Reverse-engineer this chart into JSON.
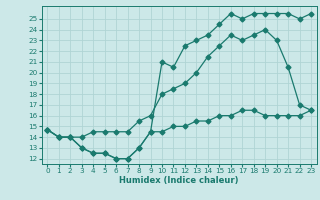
{
  "xlabel": "Humidex (Indice chaleur)",
  "xlim": [
    -0.5,
    23.5
  ],
  "ylim": [
    11.5,
    26.2
  ],
  "xticks": [
    0,
    1,
    2,
    3,
    4,
    5,
    6,
    7,
    8,
    9,
    10,
    11,
    12,
    13,
    14,
    15,
    16,
    17,
    18,
    19,
    20,
    21,
    22,
    23
  ],
  "yticks": [
    12,
    13,
    14,
    15,
    16,
    17,
    18,
    19,
    20,
    21,
    22,
    23,
    24,
    25
  ],
  "bg_color": "#cce8e8",
  "grid_color": "#b0d4d4",
  "line_color": "#1a7a6e",
  "line1_x": [
    0,
    1,
    2,
    3,
    4,
    5,
    6,
    7,
    8,
    9,
    10,
    11,
    12,
    13,
    14,
    15,
    16,
    17,
    18,
    19,
    20,
    21,
    22,
    23
  ],
  "line1_y": [
    14.7,
    14.0,
    14.0,
    14.0,
    14.5,
    14.5,
    14.5,
    14.5,
    15.5,
    16.0,
    18.0,
    18.5,
    19.0,
    20.0,
    21.5,
    22.5,
    23.5,
    23.0,
    23.5,
    24.0,
    23.0,
    20.5,
    17.0,
    16.5
  ],
  "line2_x": [
    0,
    1,
    2,
    3,
    4,
    5,
    6,
    7,
    8,
    9,
    10,
    11,
    12,
    13,
    14,
    15,
    16,
    17,
    18,
    19,
    20,
    21,
    22,
    23
  ],
  "line2_y": [
    14.7,
    14.0,
    14.0,
    13.0,
    12.5,
    12.5,
    12.0,
    12.0,
    13.0,
    14.5,
    21.0,
    20.5,
    22.5,
    23.0,
    23.5,
    24.5,
    25.5,
    25.0,
    25.5,
    25.5,
    25.5,
    25.5,
    25.0,
    25.5
  ],
  "line3_x": [
    0,
    1,
    2,
    3,
    4,
    5,
    6,
    7,
    8,
    9,
    10,
    11,
    12,
    13,
    14,
    15,
    16,
    17,
    18,
    19,
    20,
    21,
    22,
    23
  ],
  "line3_y": [
    14.7,
    14.0,
    14.0,
    13.0,
    12.5,
    12.5,
    12.0,
    12.0,
    13.0,
    14.5,
    14.5,
    15.0,
    15.0,
    15.5,
    15.5,
    16.0,
    16.0,
    16.5,
    16.5,
    16.0,
    16.0,
    16.0,
    16.0,
    16.5
  ]
}
